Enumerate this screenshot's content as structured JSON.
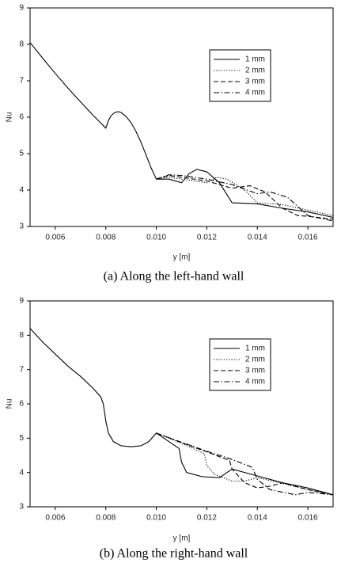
{
  "chart_data": [
    {
      "type": "line",
      "title": "(a) Along the left-hand wall",
      "xlabel": "y [m]",
      "ylabel": "Nu",
      "xlim": [
        0.005,
        0.017
      ],
      "ylim": [
        3,
        9
      ],
      "xticks": [
        0.006,
        0.008,
        {
          "value": 0.01,
          "label": "0.010"
        },
        0.012,
        0.014,
        0.016
      ],
      "yticks": [
        3,
        4,
        5,
        6,
        7,
        8,
        9
      ],
      "legend": "upper right",
      "series": [
        {
          "name": "1 mm",
          "color": "#000000",
          "style": "solid",
          "x": [
            0.005,
            0.0055,
            0.006,
            0.0065,
            0.007,
            0.0075,
            0.008,
            0.0081,
            0.0082,
            0.0083,
            0.0084,
            0.0085,
            0.0086,
            0.0088,
            0.009,
            0.0092,
            0.0094,
            0.0096,
            0.0098,
            0.0099,
            0.01,
            0.0105,
            0.011,
            0.0113,
            0.0116,
            0.012,
            0.0125,
            0.013,
            0.014,
            0.015,
            0.016,
            0.017
          ],
          "values": [
            8.05,
            7.62,
            7.2,
            6.8,
            6.42,
            6.05,
            5.7,
            5.9,
            6.03,
            6.1,
            6.14,
            6.15,
            6.13,
            6.02,
            5.85,
            5.6,
            5.3,
            4.95,
            4.6,
            4.45,
            4.3,
            4.3,
            4.2,
            4.45,
            4.57,
            4.5,
            4.2,
            3.65,
            3.62,
            3.5,
            3.4,
            3.25
          ]
        },
        {
          "name": "2 mm",
          "color": "#000000",
          "style": "dotted",
          "x": [
            0.01,
            0.0105,
            0.011,
            0.012,
            0.0124,
            0.0128,
            0.0135,
            0.014,
            0.015,
            0.016,
            0.017
          ],
          "values": [
            4.3,
            4.35,
            4.3,
            4.2,
            4.35,
            4.3,
            4.0,
            3.65,
            3.6,
            3.45,
            3.3
          ]
        },
        {
          "name": "3 mm",
          "color": "#000000",
          "style": "dashed",
          "x": [
            0.01,
            0.0105,
            0.011,
            0.012,
            0.013,
            0.0137,
            0.0143,
            0.015,
            0.0156,
            0.016,
            0.017
          ],
          "values": [
            4.3,
            4.4,
            4.35,
            4.25,
            4.05,
            4.12,
            3.95,
            3.5,
            3.3,
            3.28,
            3.2
          ]
        },
        {
          "name": "4 mm",
          "color": "#000000",
          "style": "dashdot",
          "x": [
            0.01,
            0.0105,
            0.011,
            0.012,
            0.013,
            0.014,
            0.0145,
            0.0152,
            0.016,
            0.017
          ],
          "values": [
            4.3,
            4.42,
            4.4,
            4.3,
            4.15,
            3.9,
            3.95,
            3.8,
            3.3,
            3.15
          ]
        }
      ]
    },
    {
      "type": "line",
      "title": "(b) Along the right-hand wall",
      "xlabel": "y [m]",
      "ylabel": "Nu",
      "xlim": [
        0.005,
        0.017
      ],
      "ylim": [
        3,
        9
      ],
      "xticks": [
        0.006,
        0.008,
        {
          "value": 0.01,
          "label": "0.010"
        },
        0.012,
        0.014,
        0.016
      ],
      "yticks": [
        3,
        4,
        5,
        6,
        7,
        8,
        9
      ],
      "legend": "upper right",
      "series": [
        {
          "name": "1 mm",
          "color": "#000000",
          "style": "solid",
          "x": [
            0.005,
            0.0055,
            0.006,
            0.0065,
            0.007,
            0.0075,
            0.0078,
            0.0079,
            0.008,
            0.0081,
            0.0083,
            0.0086,
            0.009,
            0.0094,
            0.0097,
            0.01,
            0.0105,
            0.0109,
            0.011,
            0.0112,
            0.0118,
            0.0125,
            0.013,
            0.014,
            0.015,
            0.016,
            0.017
          ],
          "values": [
            8.2,
            7.8,
            7.45,
            7.1,
            6.8,
            6.45,
            6.2,
            6.0,
            5.5,
            5.15,
            4.9,
            4.78,
            4.75,
            4.78,
            4.9,
            5.15,
            4.9,
            4.7,
            4.3,
            4.0,
            3.88,
            3.85,
            4.1,
            3.9,
            3.7,
            3.55,
            3.35
          ]
        },
        {
          "name": "2 mm",
          "color": "#000000",
          "style": "dotted",
          "x": [
            0.01,
            0.011,
            0.0119,
            0.012,
            0.0123,
            0.013,
            0.0135,
            0.014,
            0.015,
            0.016,
            0.017
          ],
          "values": [
            5.15,
            4.85,
            4.55,
            4.2,
            3.95,
            3.75,
            3.75,
            3.85,
            3.68,
            3.5,
            3.35
          ]
        },
        {
          "name": "3 mm",
          "color": "#000000",
          "style": "dashed",
          "x": [
            0.01,
            0.011,
            0.012,
            0.0129,
            0.013,
            0.0135,
            0.014,
            0.0145,
            0.015,
            0.016,
            0.017
          ],
          "values": [
            5.15,
            4.87,
            4.6,
            4.35,
            4.1,
            3.7,
            3.55,
            3.6,
            3.7,
            3.5,
            3.35
          ]
        },
        {
          "name": "4 mm",
          "color": "#000000",
          "style": "dashdot",
          "x": [
            0.01,
            0.011,
            0.012,
            0.013,
            0.0138,
            0.014,
            0.0145,
            0.0155,
            0.016,
            0.017
          ],
          "values": [
            5.15,
            4.88,
            4.62,
            4.38,
            4.15,
            3.8,
            3.5,
            3.35,
            3.42,
            3.35
          ]
        }
      ]
    }
  ]
}
